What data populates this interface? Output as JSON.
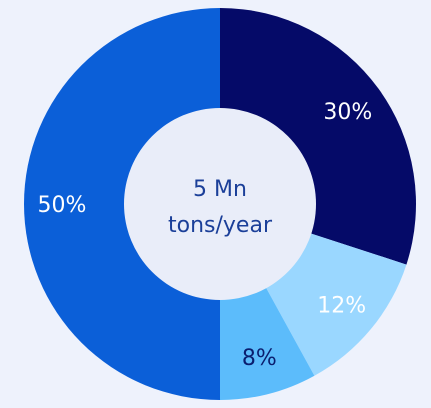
{
  "chart_data": {
    "type": "pie",
    "title": "",
    "center_label": {
      "line1": "5 Mn",
      "line2": "tons/year"
    },
    "slices": [
      {
        "label": "30%",
        "value": 30,
        "color": "#050a68",
        "text_color": "#ffffff"
      },
      {
        "label": "12%",
        "value": 12,
        "color": "#9ad7ff",
        "text_color": "#ffffff"
      },
      {
        "label": "8%",
        "value": 8,
        "color": "#5cbcfb",
        "text_color": "#0a1e6e"
      },
      {
        "label": "50%",
        "value": 50,
        "color": "#0b5fd8",
        "text_color": "#ffffff"
      }
    ],
    "start_angle_deg": 0,
    "direction": "clockwise",
    "hole_color": "#e9edf9",
    "legend": "none"
  }
}
